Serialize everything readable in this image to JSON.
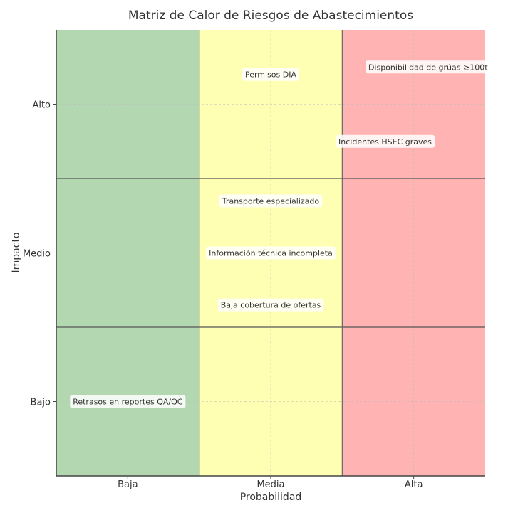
{
  "chart_data": {
    "type": "heatmap",
    "title": "Matriz de Calor de Riesgos de Abastecimientos",
    "xlabel": "Probabilidad",
    "ylabel": "Impacto",
    "x_categories": [
      "Baja",
      "Media",
      "Alta"
    ],
    "y_categories": [
      "Bajo",
      "Medio",
      "Alto"
    ],
    "xlim": [
      -0.5,
      2.5
    ],
    "ylim": [
      -0.5,
      2.5
    ],
    "grid": true,
    "column_colors": [
      "#b3d7b1",
      "#ffffb3",
      "#ffb3b3"
    ],
    "annotations": [
      {
        "text": "Permisos DIA",
        "x": 1.0,
        "y": 2.2
      },
      {
        "text": "Disponibilidad de grúas ≥100t",
        "x": 2.1,
        "y": 2.25
      },
      {
        "text": "Incidentes HSEC graves",
        "x": 1.8,
        "y": 1.75
      },
      {
        "text": "Transporte especializado",
        "x": 1.0,
        "y": 1.35
      },
      {
        "text": "Información técnica incompleta",
        "x": 1.0,
        "y": 1.0
      },
      {
        "text": "Baja cobertura de ofertas",
        "x": 1.0,
        "y": 0.65
      },
      {
        "text": "Retrasos en reportes QA/QC",
        "x": 0.0,
        "y": 0.0
      }
    ]
  }
}
